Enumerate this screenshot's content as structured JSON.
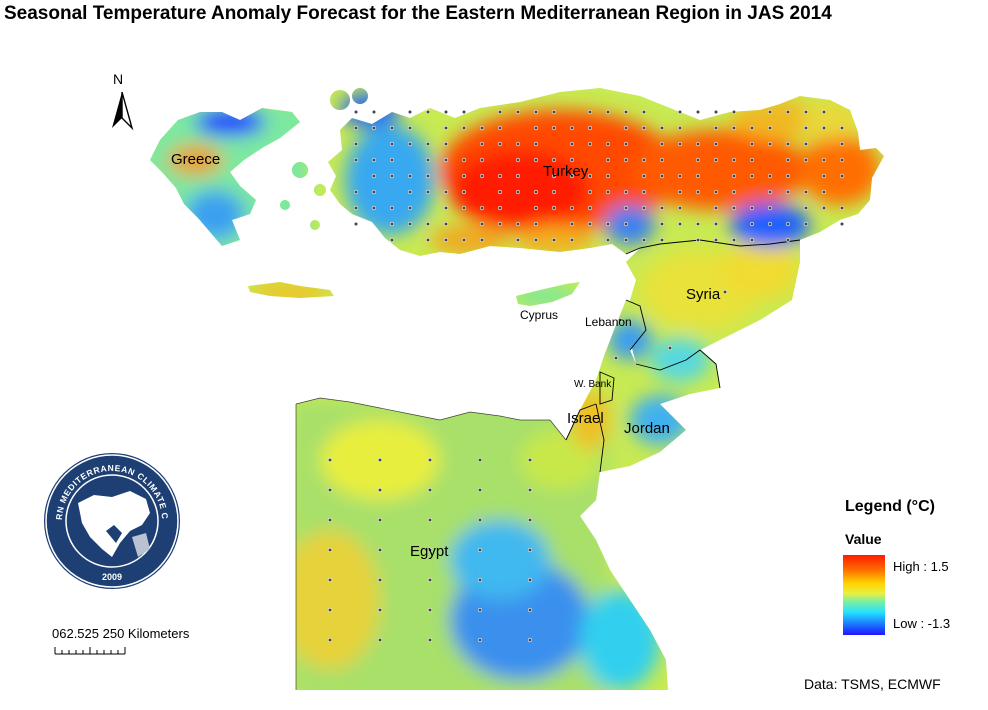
{
  "title": "Seasonal Temperature Anomaly Forecast for the Eastern Mediterranean Region in JAS 2014",
  "north_arrow": {
    "letter": "N"
  },
  "countries": {
    "greece": "Greece",
    "turkey": "Turkey",
    "syria": "Syria",
    "cyprus": "Cyprus",
    "lebanon": "Lebanon",
    "west_bank": "W. Bank",
    "israel": "Israel",
    "jordan": "Jordan",
    "egypt": "Egypt"
  },
  "logo": {
    "text": "EASTERN MEDITERRANEAN CLIMATE CENTRE",
    "year": "2009",
    "colors": {
      "ring": "#1d3f73",
      "land": "#ffffff",
      "sea": "#1d3f73"
    }
  },
  "scale_bar": {
    "text": "062.525  250 Kilometers"
  },
  "legend": {
    "title": "Legend (°C)",
    "subtitle": "Value",
    "high": "High : 1.5",
    "low": "Low : -1.3",
    "high_value": 1.5,
    "low_value": -1.3,
    "colors": [
      "#2014ff",
      "#1a6cff",
      "#22e0ff",
      "#7cf0a0",
      "#e8f040",
      "#ffd200",
      "#ff6a00",
      "#ff1a00"
    ]
  },
  "source": "Data:  TSMS, ECMWF"
}
